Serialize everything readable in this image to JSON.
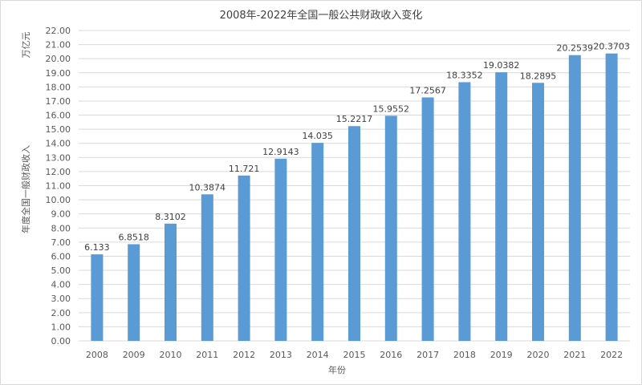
{
  "chart_data": {
    "type": "bar",
    "title": "2008年-2022年全国一般公共财政收入变化",
    "xlabel": "年份",
    "ylabel": "年度全国一般财政收入",
    "y_unit": "万亿元",
    "ylim": [
      0,
      22
    ],
    "y_tick_step": 1,
    "y_tick_decimals": 2,
    "grid": true,
    "legend": "none",
    "categories": [
      "2008",
      "2009",
      "2010",
      "2011",
      "2012",
      "2013",
      "2014",
      "2015",
      "2016",
      "2017",
      "2018",
      "2019",
      "2020",
      "2021",
      "2022"
    ],
    "values": [
      6.133,
      6.8518,
      8.3102,
      10.3874,
      11.721,
      12.9143,
      14.035,
      15.2217,
      15.9552,
      17.2567,
      18.3352,
      19.0382,
      18.2895,
      20.2539,
      20.3703
    ],
    "data_labels": [
      "6.133",
      "6.8518",
      "8.3102",
      "10.3874",
      "11.721",
      "12.9143",
      "14.035",
      "15.2217",
      "15.9552",
      "17.2567",
      "18.3352",
      "19.0382",
      "18.2895",
      "20.2539",
      "20.3703"
    ],
    "bar_color": "#5b9bd5",
    "grid_color": "#d9d9d9"
  }
}
